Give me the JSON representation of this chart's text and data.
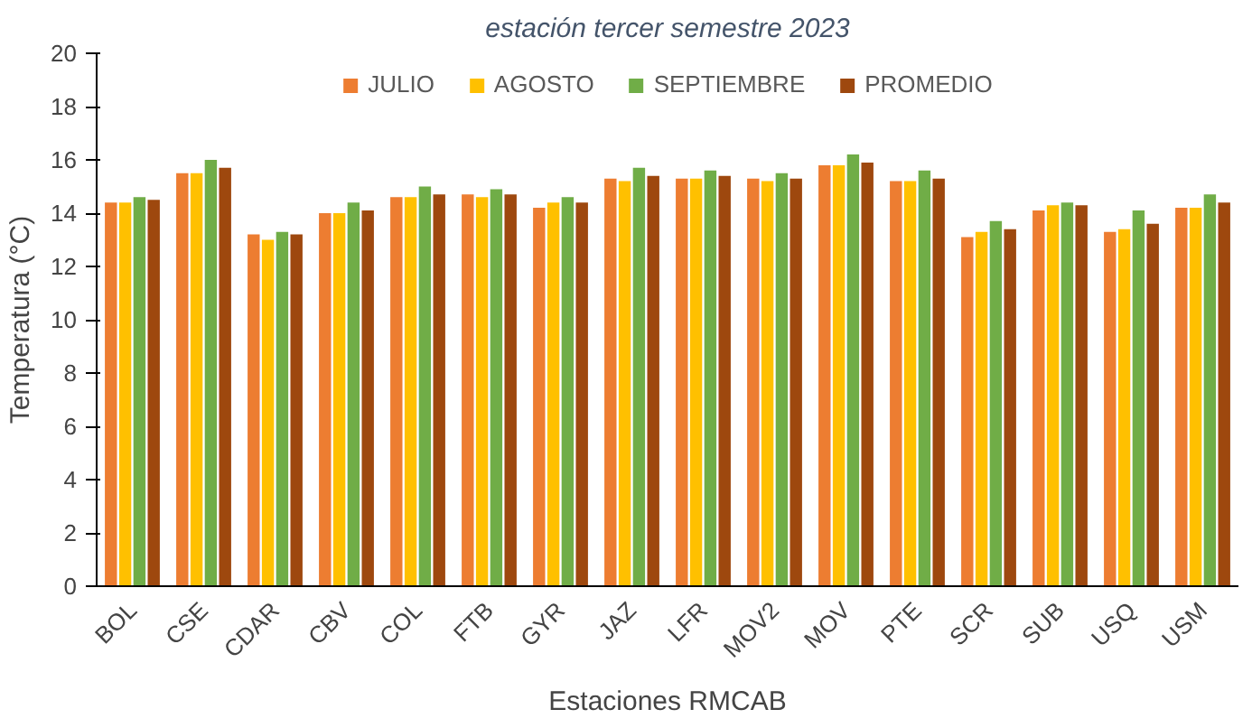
{
  "chart_data": {
    "type": "bar",
    "title": "estación tercer semestre 2023",
    "xlabel": "Estaciones RMCAB",
    "ylabel": "Temperatura (°C)",
    "categories": [
      "BOL",
      "CSE",
      "CDAR",
      "CBV",
      "COL",
      "FTB",
      "GYR",
      "JAZ",
      "LFR",
      "MOV2",
      "MOV",
      "PTE",
      "SCR",
      "SUB",
      "USQ",
      "USM"
    ],
    "series": [
      {
        "name": "JULIO",
        "color": "#ed7d31",
        "values": [
          14.4,
          15.5,
          13.2,
          14.0,
          14.6,
          14.7,
          14.2,
          15.3,
          15.3,
          15.3,
          15.8,
          15.2,
          13.1,
          14.1,
          13.3,
          14.2
        ]
      },
      {
        "name": "AGOSTO",
        "color": "#ffc000",
        "values": [
          14.4,
          15.5,
          13.0,
          14.0,
          14.6,
          14.6,
          14.4,
          15.2,
          15.3,
          15.2,
          15.8,
          15.2,
          13.3,
          14.3,
          13.4,
          14.2
        ]
      },
      {
        "name": "SEPTIEMBRE",
        "color": "#70ad47",
        "values": [
          14.6,
          16.0,
          13.3,
          14.4,
          15.0,
          14.9,
          14.6,
          15.7,
          15.6,
          15.5,
          16.2,
          15.6,
          13.7,
          14.4,
          14.1,
          14.7
        ]
      },
      {
        "name": "PROMEDIO",
        "color": "#9e480e",
        "values": [
          14.5,
          15.7,
          13.2,
          14.1,
          14.7,
          14.7,
          14.4,
          15.4,
          15.4,
          15.3,
          15.9,
          15.3,
          13.4,
          14.3,
          13.6,
          14.4
        ]
      }
    ],
    "ylim": [
      0,
      20
    ],
    "yticks": [
      0,
      2,
      4,
      6,
      8,
      10,
      12,
      14,
      16,
      18,
      20
    ],
    "grid": false,
    "legend": "top"
  }
}
